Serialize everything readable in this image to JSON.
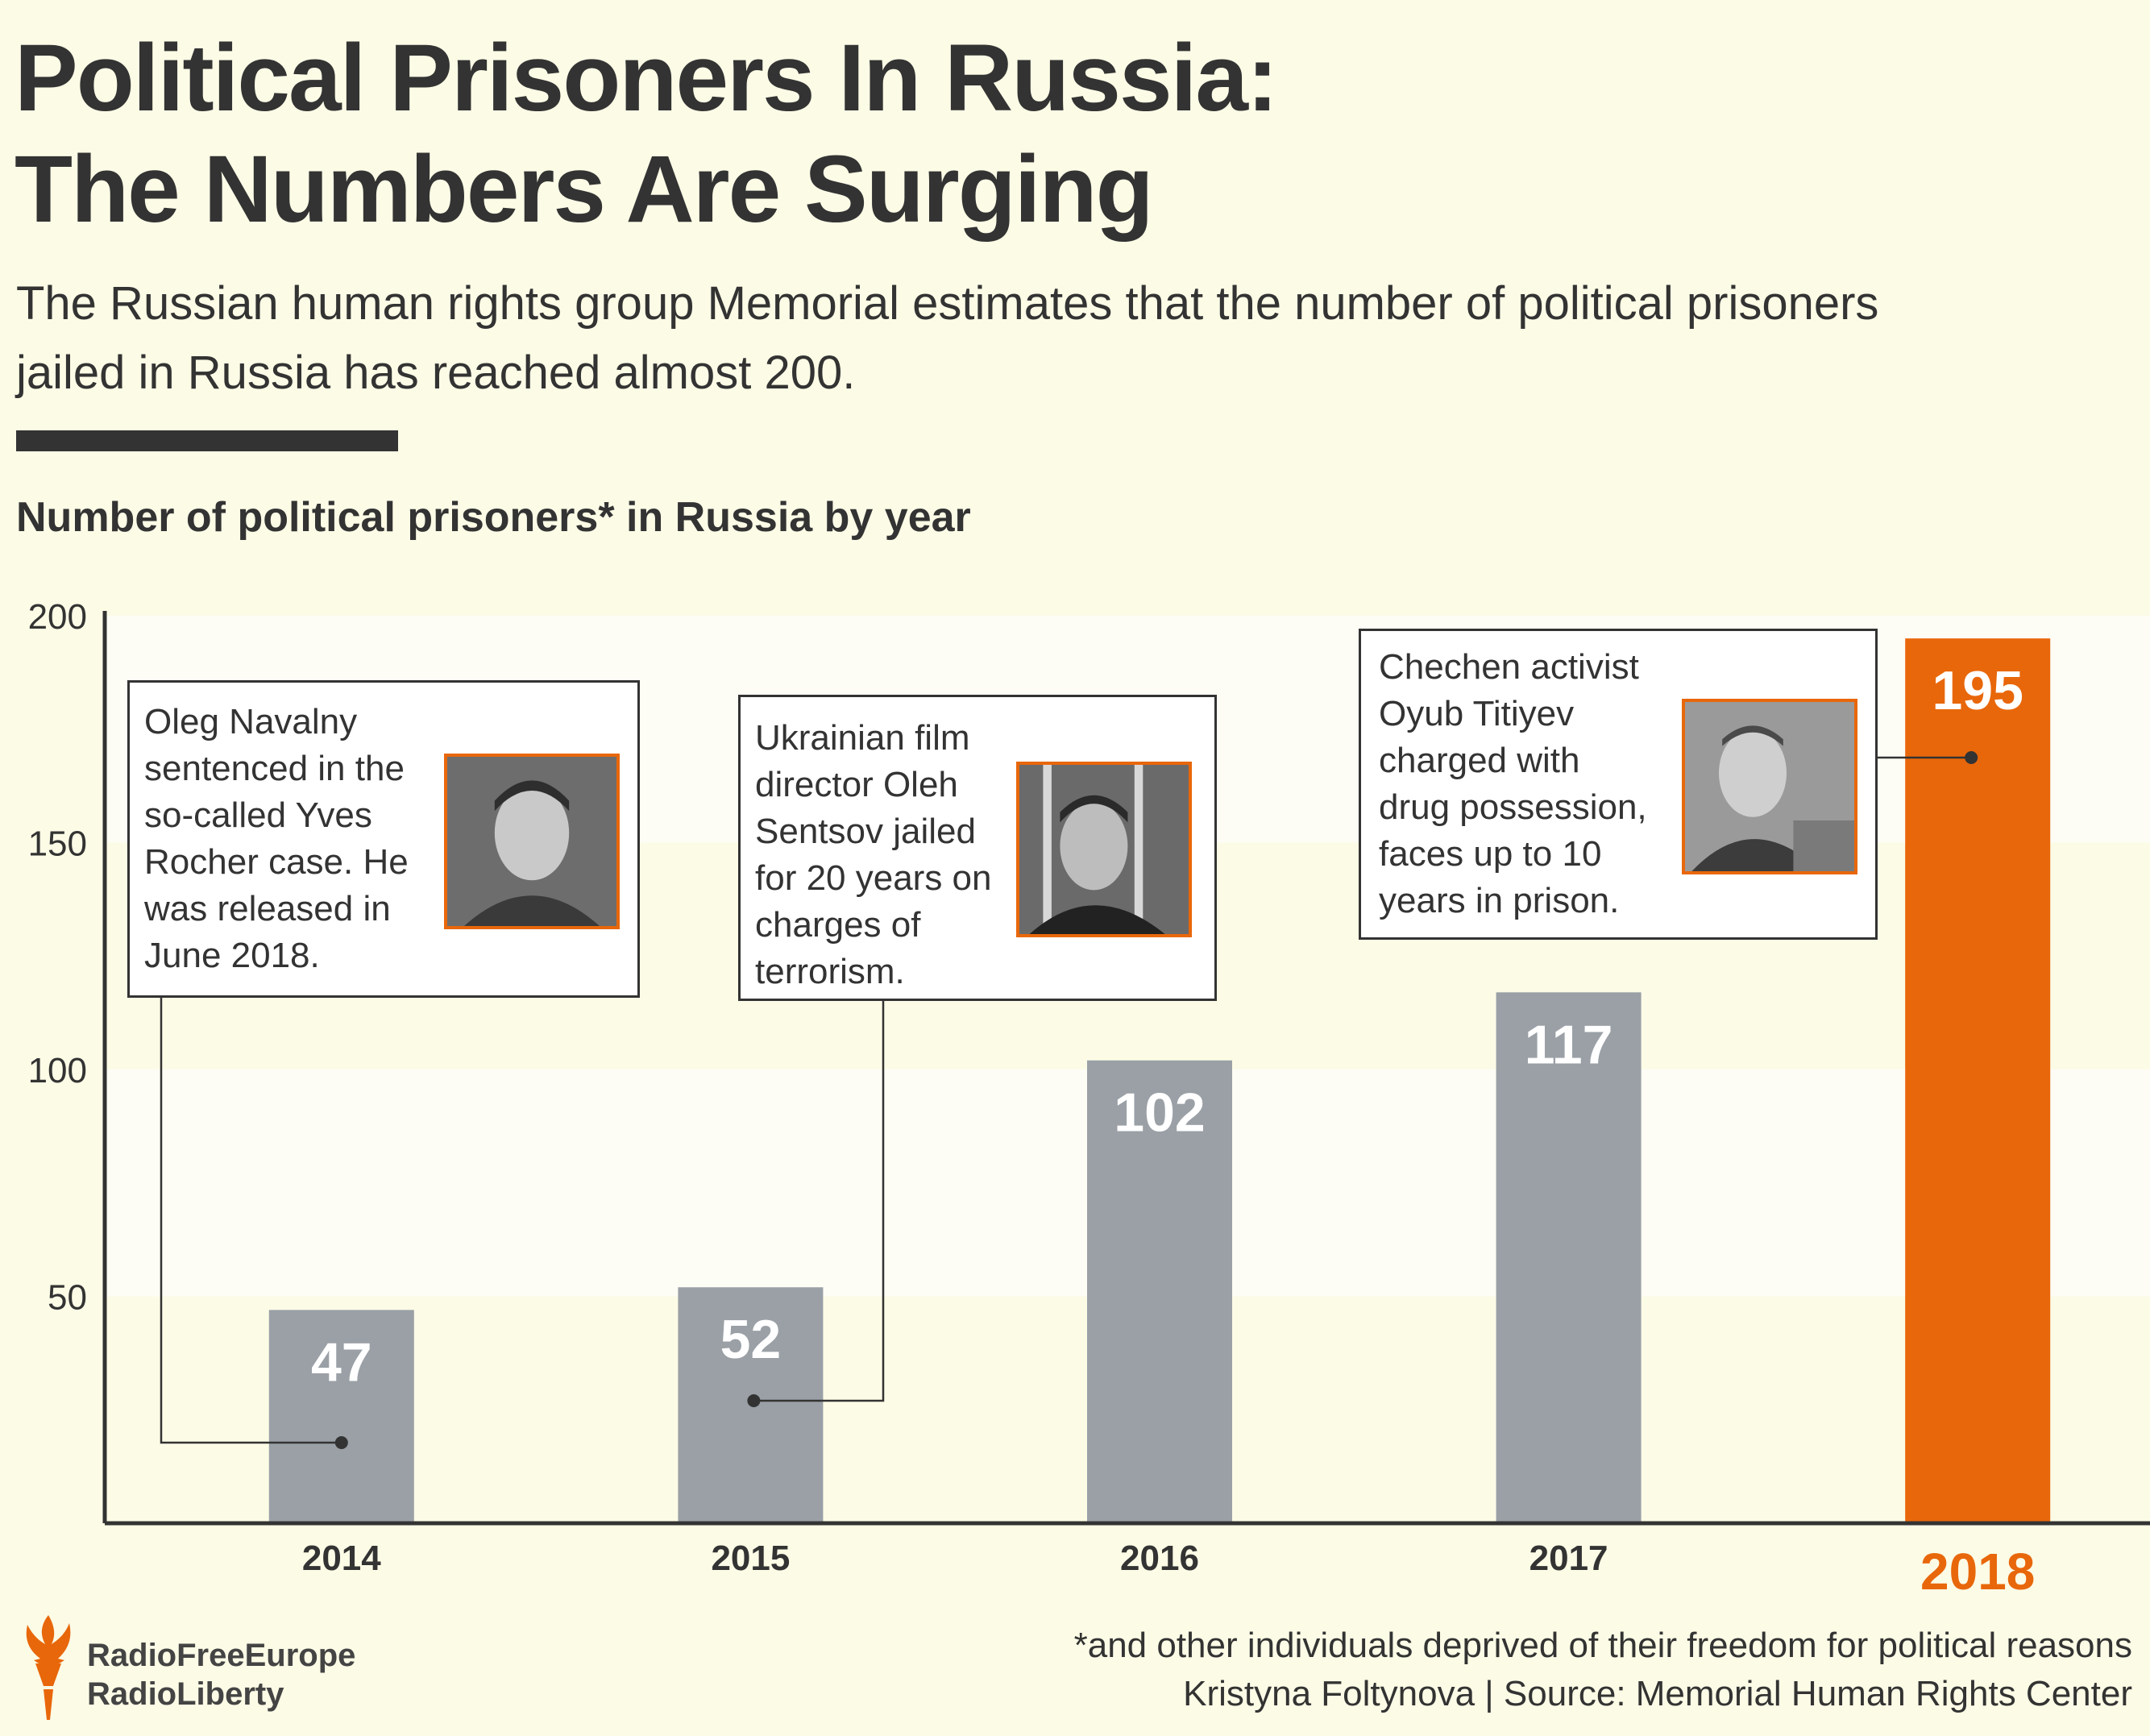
{
  "header": {
    "title_line1": "Political Prisoners In Russia:",
    "title_line2": "The Numbers Are Surging",
    "subtitle_line1": "The Russian human rights group Memorial estimates that the number of political prisoners",
    "subtitle_line2": "jailed in Russia has reached almost 200."
  },
  "colors": {
    "background": "#fcfbe6",
    "band_light": "#fdfcf5",
    "bar_gray": "#9aa0a6",
    "highlight": "#e8670a",
    "text": "#333333"
  },
  "chart_data": {
    "type": "bar",
    "title": "Number of political prisoners* in Russia by year",
    "categories": [
      "2014",
      "2015",
      "2016",
      "2017",
      "2018"
    ],
    "values": [
      47,
      52,
      102,
      117,
      195
    ],
    "highlight_index": 4,
    "ylim": [
      0,
      200
    ],
    "yticks": [
      50,
      100,
      150,
      200
    ],
    "xlabel": "",
    "ylabel": ""
  },
  "annotations": [
    {
      "bar_index": 0,
      "lines": [
        "Oleg Navalny",
        "sentenced in the",
        "so-called Yves",
        "Rocher case. He",
        "was released in",
        "June 2018."
      ],
      "photo_icon": "oleg-navalny-photo"
    },
    {
      "bar_index": 1,
      "lines": [
        "Ukrainian film",
        "director Oleh",
        "Sentsov jailed",
        "for 20 years on",
        "charges of",
        "terrorism."
      ],
      "photo_icon": "oleh-sentsov-photo"
    },
    {
      "bar_index": 4,
      "lines": [
        "Chechen activist",
        "Oyub Titiyev",
        "charged with",
        "drug possession,",
        "faces up to 10",
        "years in prison."
      ],
      "photo_icon": "oyub-titiyev-photo"
    }
  ],
  "footer": {
    "footnote": "*and other individuals deprived of their freedom for political reasons",
    "credit": "Kristyna Foltynova | Source: Memorial Human Rights Center",
    "logo_line1": "RadioFreeEurope",
    "logo_line2": "RadioLiberty",
    "logo_icon": "torch-icon"
  }
}
